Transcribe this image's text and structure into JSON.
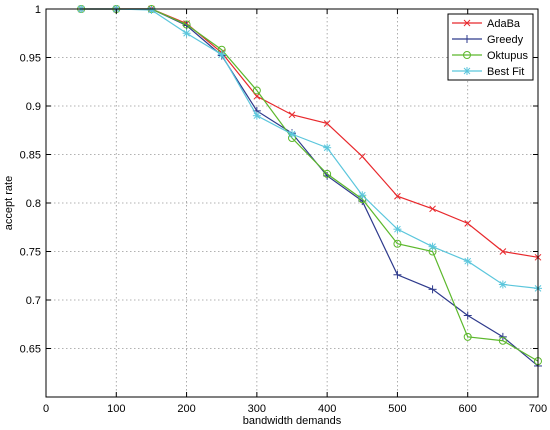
{
  "chart_data": {
    "type": "line",
    "title": "",
    "xlabel": "bandwidth demands",
    "ylabel": "accept rate",
    "xlim": [
      0,
      700
    ],
    "ylim": [
      0.6,
      1.0
    ],
    "xticks": [
      0,
      100,
      200,
      300,
      400,
      500,
      600,
      700
    ],
    "yticks": [
      0.65,
      0.7,
      0.75,
      0.8,
      0.85,
      0.9,
      0.95,
      1
    ],
    "xtick_labels": [
      "0",
      "100",
      "200",
      "300",
      "400",
      "500",
      "600",
      "700"
    ],
    "ytick_labels": [
      "0.65",
      "0.7",
      "0.75",
      "0.8",
      "0.85",
      "0.9",
      "0.95",
      "1"
    ],
    "grid": true,
    "legend_position": "top-right",
    "x": [
      50,
      100,
      150,
      200,
      250,
      300,
      350,
      400,
      450,
      500,
      550,
      600,
      650,
      700
    ],
    "series": [
      {
        "name": "AdaBa",
        "color": "#e8282c",
        "marker": "x",
        "values": [
          1.0,
          1.0,
          1.0,
          0.985,
          0.955,
          0.91,
          0.891,
          0.882,
          0.848,
          0.807,
          0.794,
          0.779,
          0.75,
          0.744
        ]
      },
      {
        "name": "Greedy",
        "color": "#2e3a8c",
        "marker": "+",
        "values": [
          1.0,
          1.0,
          1.0,
          0.983,
          0.952,
          0.895,
          0.872,
          0.828,
          0.802,
          0.726,
          0.711,
          0.684,
          0.662,
          0.632
        ]
      },
      {
        "name": "Oktupus",
        "color": "#5cb82c",
        "marker": "o",
        "values": [
          1.0,
          1.0,
          1.0,
          0.984,
          0.958,
          0.916,
          0.867,
          0.83,
          0.804,
          0.758,
          0.75,
          0.662,
          0.658,
          0.637
        ]
      },
      {
        "name": "Best Fit",
        "color": "#5bc6dc",
        "marker": "*",
        "values": [
          1.0,
          1.0,
          0.999,
          0.975,
          0.953,
          0.89,
          0.871,
          0.857,
          0.808,
          0.773,
          0.755,
          0.74,
          0.716,
          0.712
        ]
      }
    ]
  }
}
